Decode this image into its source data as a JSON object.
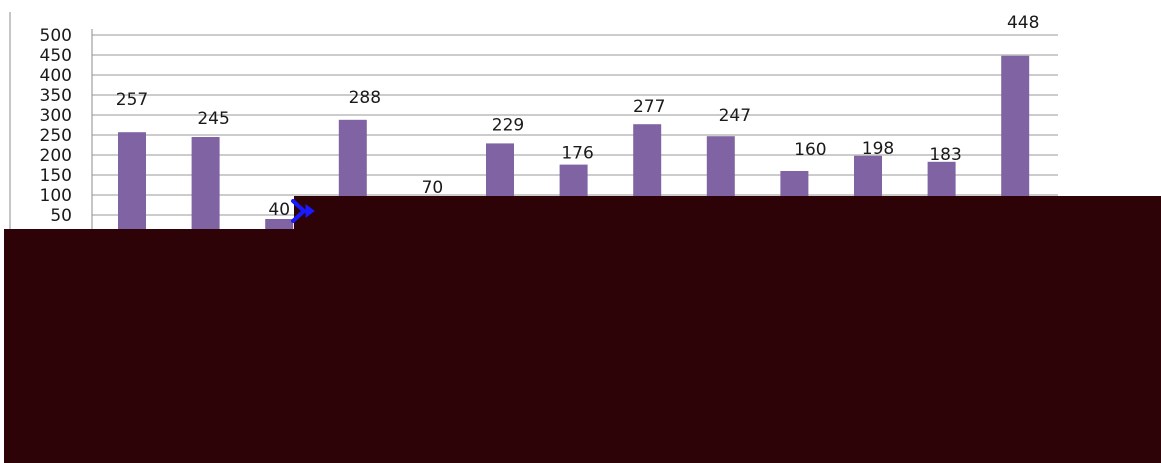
{
  "chart_data": {
    "type": "bar",
    "title": "",
    "xlabel": "",
    "ylabel": "",
    "ylim": [
      0,
      500
    ],
    "y_ticks": [
      "500",
      "450",
      "400",
      "350",
      "300",
      "250",
      "200",
      "150",
      "100",
      "50"
    ],
    "grid": true,
    "legend": "none",
    "bar_color": "#8063a2",
    "values": [
      257,
      245,
      40,
      288,
      70,
      229,
      176,
      277,
      247,
      160,
      198,
      183,
      448
    ],
    "data_labels": [
      "257",
      "245",
      "40",
      "288",
      "70",
      "229",
      "176",
      "277",
      "247",
      "160",
      "198",
      "183",
      "448"
    ]
  },
  "overlay": {
    "color": "#2d0308",
    "cursor_icon": "arrow-cursor-icon",
    "cursor_color": "#1a1aff"
  }
}
